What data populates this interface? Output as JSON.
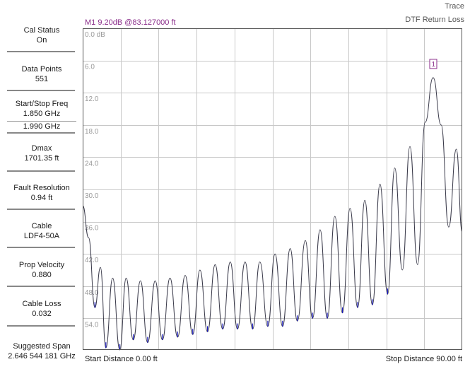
{
  "sidebar": {
    "items": [
      {
        "label": "Cal Status",
        "value": "On"
      },
      {
        "label": "Data Points",
        "value": "551"
      },
      {
        "label": "Start/Stop Freq",
        "value": "1.850 GHz",
        "value2": "1.990 GHz"
      },
      {
        "label": "Dmax",
        "value": "1701.35 ft"
      },
      {
        "label": "Fault Resolution",
        "value": "0.94 ft"
      },
      {
        "label": "Cable",
        "value": "LDF4-50A"
      },
      {
        "label": "Prop Velocity",
        "value": "0.880"
      },
      {
        "label": "Cable Loss",
        "value": "0.032"
      },
      {
        "label": "Suggested Span",
        "value": "2.646 544 181 GHz"
      }
    ]
  },
  "header": {
    "trace_title": "Trace",
    "trace_name": "DTF Return Loss",
    "marker_readout": "M1 9.20dB @83.127000 ft"
  },
  "footer": {
    "start_distance": "Start Distance 0.00 ft",
    "stop_distance": "Stop Distance 90.00 ft"
  },
  "chart_data": {
    "type": "line",
    "title": "DTF Return Loss",
    "xlabel": "",
    "ylabel": "",
    "xlim": [
      0,
      90
    ],
    "ylim": [
      0,
      60
    ],
    "y_inverted": true,
    "y_tick_labels": [
      "0.0 dB",
      "6.0",
      "12.0",
      "18.0",
      "24.0",
      "30.0",
      "36.0",
      "42.0",
      "48.0",
      "54.0"
    ],
    "y_tick_values": [
      0,
      6,
      12,
      18,
      24,
      30,
      36,
      42,
      48,
      54
    ],
    "grid": true,
    "x_grid_divisions": 10,
    "series": [
      {
        "x": [
          0.0,
          1.4,
          2.9,
          4.2,
          5.5,
          7.1,
          8.8,
          10.3,
          12.0,
          13.7,
          15.4,
          17.2,
          18.9,
          20.7,
          22.5,
          24.3,
          26.1,
          27.8,
          29.6,
          31.4,
          33.2,
          35.0,
          36.7,
          38.5,
          40.3,
          42.0,
          43.9,
          45.6,
          47.4,
          49.2,
          50.9,
          52.8,
          54.5,
          56.3,
          58.0,
          59.8,
          61.6,
          63.4,
          65.2,
          66.9,
          68.7,
          70.5,
          72.3,
          74.0,
          75.8,
          77.6,
          79.4,
          81.2,
          83.1,
          85.0,
          86.8,
          88.6,
          90.0
        ],
        "y": [
          33.0,
          39.0,
          52.0,
          44.5,
          59.5,
          46.5,
          60.0,
          46.5,
          58.0,
          47.0,
          58.5,
          47.0,
          58.0,
          46.5,
          57.5,
          46.0,
          57.0,
          45.0,
          56.5,
          44.0,
          56.0,
          43.5,
          56.0,
          43.5,
          56.0,
          43.5,
          55.5,
          42.0,
          55.5,
          41.0,
          54.5,
          39.5,
          54.0,
          37.5,
          54.0,
          35.0,
          53.0,
          33.5,
          52.0,
          32.0,
          51.5,
          29.0,
          49.5,
          26.0,
          45.0,
          22.0,
          44.0,
          17.5,
          9.2,
          18.0,
          37.0,
          22.5,
          38.0
        ]
      }
    ],
    "markers": [
      {
        "label": "1",
        "x": 83.127,
        "y": 9.2
      }
    ]
  },
  "colors": {
    "trace": "#3a3a4a",
    "trace_tip": "#1a1ac0",
    "marker": "#8a2d8a",
    "grid": "#c8c8c8",
    "border": "#555555"
  }
}
